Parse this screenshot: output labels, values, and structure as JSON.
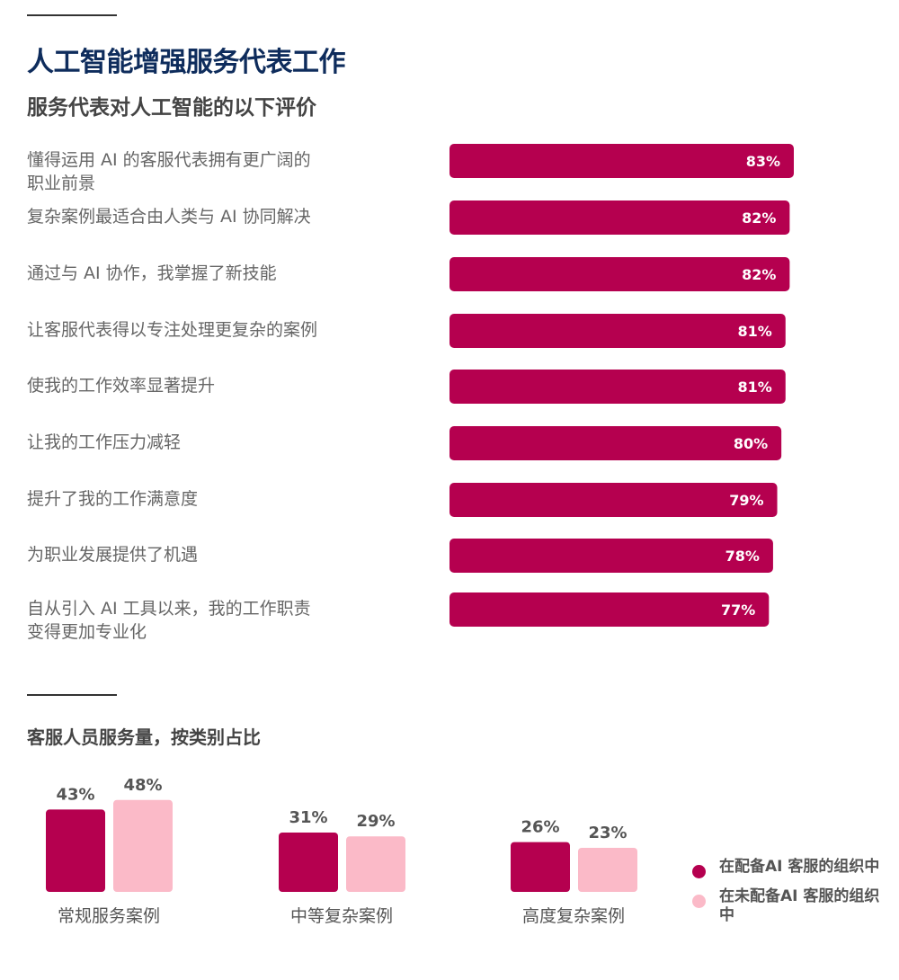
{
  "header": {
    "title": "人工智能增强服务代表工作",
    "subtitle": "服务代表对人工智能的以下评价"
  },
  "section2": {
    "title": "客服人员服务量，按类别占比"
  },
  "colors": {
    "primary": "#b5004f",
    "secondary": "#fbbac8",
    "title": "#0e2c5c"
  },
  "legend": [
    {
      "label": "在配备AI 客服的组织中",
      "color": "#b5004f"
    },
    {
      "label": "在未配备AI 客服的组织中",
      "color": "#fbbac8"
    }
  ],
  "chart_data": [
    {
      "type": "bar",
      "orientation": "horizontal",
      "title": "服务代表对人工智能的以下评价",
      "categories": [
        "懂得运用 AI 的客服代表拥有更广阔的职业前景",
        "复杂案例最适合由人类与 AI 协同解决",
        "通过与 AI 协作，我掌握了新技能",
        "让客服代表得以专注处理更复杂的案例",
        "使我的工作效率显著提升",
        "让我的工作压力减轻",
        "提升了我的工作满意度",
        "为职业发展提供了机遇",
        "自从引入 AI 工具以来，我的工作职责变得更加专业化"
      ],
      "label_lines": [
        [
          "懂得运用 AI 的客服代表拥有更广阔的",
          "职业前景"
        ],
        [
          "复杂案例最适合由人类与 AI 协同解决"
        ],
        [
          "通过与 AI 协作，我掌握了新技能"
        ],
        [
          "让客服代表得以专注处理更复杂的案例"
        ],
        [
          "使我的工作效率显著提升"
        ],
        [
          "让我的工作压力减轻"
        ],
        [
          "提升了我的工作满意度"
        ],
        [
          "为职业发展提供了机遇"
        ],
        [
          "自从引入 AI 工具以来，我的工作职责",
          "变得更加专业化"
        ]
      ],
      "values": [
        83,
        82,
        82,
        81,
        81,
        80,
        79,
        78,
        77
      ],
      "value_labels": [
        "83%",
        "82%",
        "82%",
        "81%",
        "81%",
        "80%",
        "79%",
        "78%",
        "77%"
      ],
      "unit": "%",
      "color": "#b5004f"
    },
    {
      "type": "bar",
      "orientation": "vertical",
      "title": "客服人员服务量，按类别占比",
      "categories": [
        "常规服务案例",
        "中等复杂案例",
        "高度复杂案例"
      ],
      "series": [
        {
          "name": "在配备AI 客服的组织中",
          "values": [
            43,
            31,
            26
          ],
          "value_labels": [
            "43%",
            "31%",
            "26%"
          ],
          "color": "#b5004f"
        },
        {
          "name": "在未配备AI 客服的组织中",
          "values": [
            48,
            29,
            23
          ],
          "value_labels": [
            "48%",
            "29%",
            "23%"
          ],
          "color": "#fbbac8"
        }
      ],
      "unit": "%",
      "legend": "right"
    }
  ]
}
